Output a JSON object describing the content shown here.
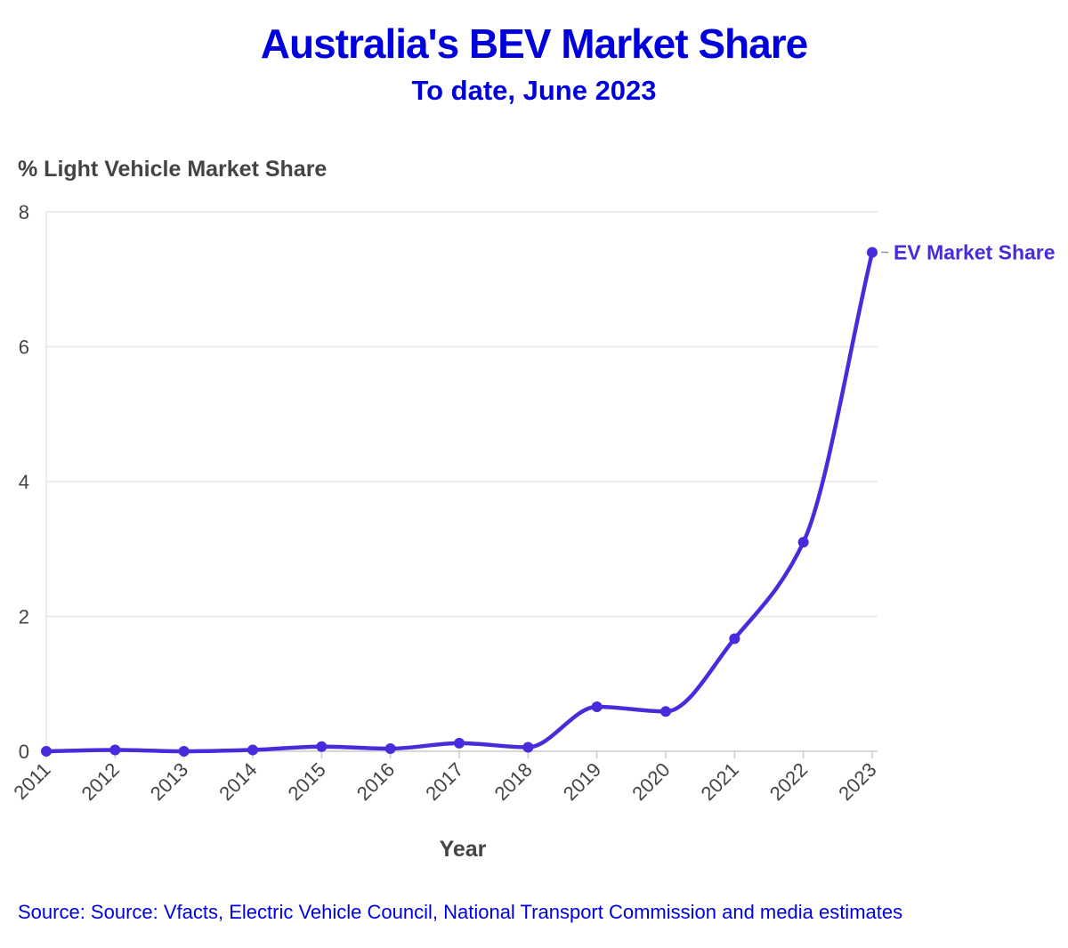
{
  "title": "Australia's BEV Market Share",
  "subtitle": "To date, June 2023",
  "source": "Source: Source: Vfacts, Electric Vehicle Council, National Transport Commission and media estimates",
  "colors": {
    "title": "#0000dd",
    "series": "#4a2bdb",
    "grid": "#e6e6e6",
    "text": "#444444"
  },
  "chart_data": {
    "type": "line",
    "title": "Australia's BEV Market Share",
    "subtitle": "To date, June 2023",
    "xlabel": "Year",
    "ylabel": "% Light Vehicle Market Share",
    "x": [
      "2011",
      "2012",
      "2013",
      "2014",
      "2015",
      "2016",
      "2017",
      "2018",
      "2019",
      "2020",
      "2021",
      "2022",
      "2023"
    ],
    "series": [
      {
        "name": "EV Market Share",
        "values": [
          0.0,
          0.02,
          0.0,
          0.02,
          0.07,
          0.04,
          0.12,
          0.06,
          0.66,
          0.59,
          1.67,
          3.1,
          7.4
        ]
      }
    ],
    "yticks": [
      "0",
      "2",
      "4",
      "6",
      "8"
    ],
    "ylim": [
      0,
      8
    ],
    "grid": true,
    "legend": "end-of-line label"
  }
}
